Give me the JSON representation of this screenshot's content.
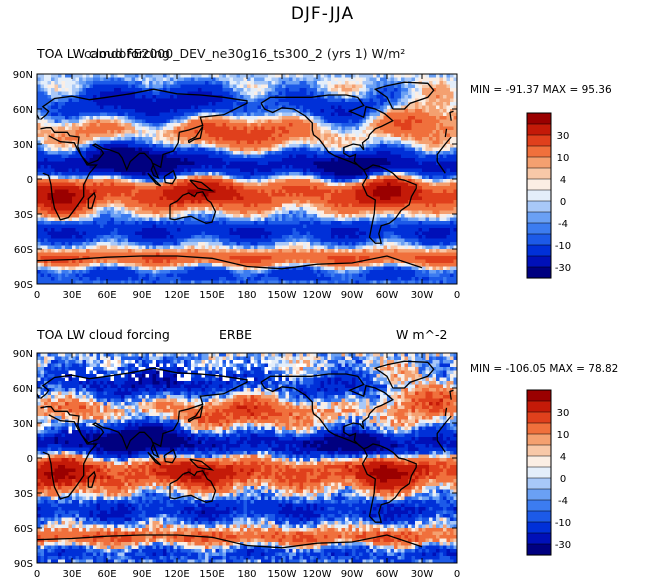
{
  "figure_title": "DJF-JJA",
  "chart_data": [
    {
      "type": "heatmap",
      "title_left_a": "TOA LW cloud forcing",
      "title_left_b": "camdoFE2000_DEV_ne30g16_ts300_2 (yrs 1)",
      "title_right": "W/m²",
      "stats": "MIN = -91.37 MAX =  95.36",
      "min": -91.37,
      "max": 95.36,
      "y_ticks": [
        "90N",
        "60N",
        "30N",
        "0",
        "30S",
        "60S",
        "90S"
      ],
      "x_ticks": [
        "0",
        "30E",
        "60E",
        "90E",
        "120E",
        "150E",
        "180",
        "150W",
        "120W",
        "90W",
        "60W",
        "30W",
        "0"
      ],
      "colorbar_labels": [
        "30",
        "10",
        "4",
        "0",
        "-4",
        "-10",
        "-30"
      ]
    },
    {
      "type": "heatmap",
      "title_left_a": "TOA LW cloud forcing",
      "title_center": "ERBE",
      "title_right": "W m^-2",
      "stats": "MIN = -106.05 MAX =  78.82",
      "min": -106.05,
      "max": 78.82,
      "y_ticks": [
        "90N",
        "60N",
        "30N",
        "0",
        "30S",
        "60S",
        "90S"
      ],
      "x_ticks": [
        "0",
        "30E",
        "60E",
        "90E",
        "120E",
        "150E",
        "180",
        "150W",
        "120W",
        "90W",
        "60W",
        "30W",
        "0"
      ],
      "colorbar_labels": [
        "30",
        "10",
        "4",
        "0",
        "-4",
        "-10",
        "-30"
      ]
    }
  ],
  "colors": {
    "palette": [
      "#000080",
      "#0010b8",
      "#0030d8",
      "#1c5ae8",
      "#3c7cf0",
      "#6aa0f4",
      "#a8c8f8",
      "#e4eefa",
      "#fbeee4",
      "#f8c8a8",
      "#f4a070",
      "#f0703c",
      "#e0401c",
      "#c41a08",
      "#9a0000"
    ]
  }
}
